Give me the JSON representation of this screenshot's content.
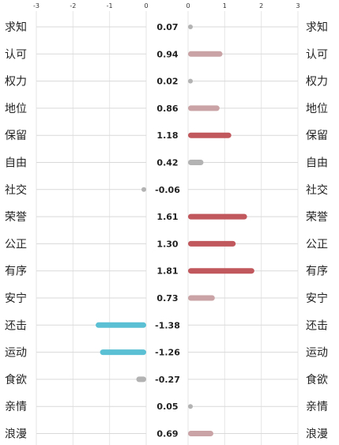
{
  "chart_data": {
    "type": "bar",
    "categories": [
      "求知",
      "认可",
      "权力",
      "地位",
      "保留",
      "自由",
      "社交",
      "荣誉",
      "公正",
      "有序",
      "安宁",
      "还击",
      "运动",
      "食欲",
      "亲情",
      "浪漫"
    ],
    "values": [
      0.07,
      0.94,
      0.02,
      0.86,
      1.18,
      0.42,
      -0.06,
      1.61,
      1.3,
      1.81,
      0.73,
      -1.38,
      -1.26,
      -0.27,
      0.05,
      0.69
    ],
    "value_labels": [
      "0.07",
      "0.94",
      "0.02",
      "0.86",
      "1.18",
      "0.42",
      "-0.06",
      "1.61",
      "1.30",
      "1.81",
      "0.73",
      "-1.38",
      "-1.26",
      "-0.27",
      "0.05",
      "0.69"
    ],
    "negative_axis": {
      "ticks": [
        "-3",
        "-2",
        "-1",
        "0"
      ],
      "xlim": [
        -3,
        0
      ]
    },
    "positive_axis": {
      "ticks": [
        "0",
        "1",
        "2",
        "3"
      ],
      "xlim": [
        0,
        3
      ]
    },
    "grid": true,
    "colors": {
      "negative": "#5bc0d3",
      "negative_small": "#b3b3b3",
      "positive_high": "#c0585d",
      "positive_mid": "#c9a3a5",
      "positive_low": "#b3b3b3"
    }
  }
}
